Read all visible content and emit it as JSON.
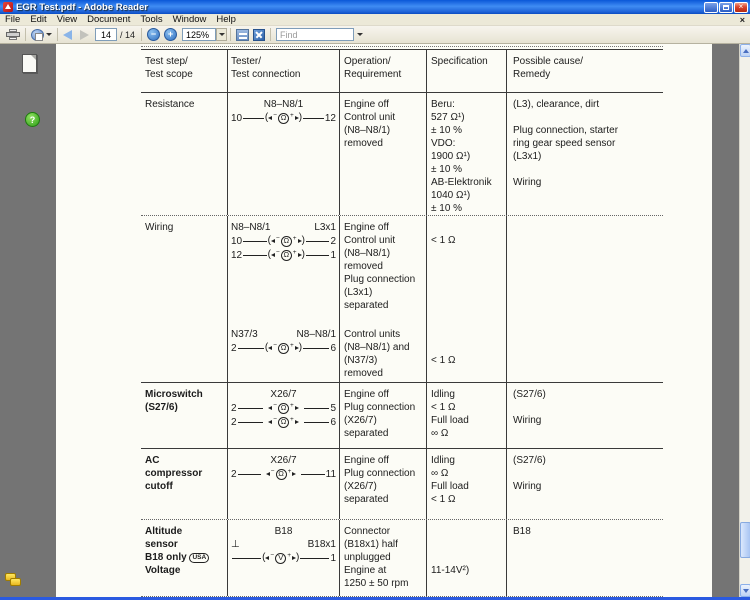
{
  "window": {
    "title": "EGR Test.pdf - Adobe Reader"
  },
  "menu": {
    "items": [
      "File",
      "Edit",
      "View",
      "Document",
      "Tools",
      "Window",
      "Help"
    ]
  },
  "toolbar": {
    "page_current": "14",
    "page_total": "/ 14",
    "zoom_level": "125%",
    "find_placeholder": "Find"
  },
  "icons": {
    "minimize": "_",
    "close": "×",
    "help": "?",
    "zoom_out": "−",
    "zoom_in": "+",
    "meter_minus": "−",
    "meter_plus": "+"
  },
  "pdf_table": {
    "columns": [
      [
        "Test step/",
        "Test scope"
      ],
      [
        "Tester/",
        "Test connection"
      ],
      [
        "Operation/",
        "Requirement"
      ],
      [
        "Specification"
      ],
      [
        "Possible cause/",
        "Remedy"
      ]
    ],
    "rows": [
      {
        "step": {
          "bold": false,
          "lines": [
            "Resistance"
          ]
        },
        "tester": {
          "subs": [
            {
              "labels": [
                {
                  "c": "N8–N8/1"
                }
              ],
              "lines": [
                {
                  "l": "10",
                  "r": "12",
                  "m": "Ω",
                  "paren": true
                }
              ]
            }
          ]
        },
        "operation": {
          "subs": [
            [
              "Engine off",
              "Control unit",
              "(N8–N8/1)",
              "removed"
            ]
          ]
        },
        "spec": {
          "subs": [
            [
              "Beru:",
              "527 Ω¹)",
              "± 10 %",
              "VDO:",
              "1900 Ω¹)",
              "± 10 %",
              "AB-Elektronik",
              "1040 Ω¹)",
              "± 10 %"
            ]
          ]
        },
        "cause": {
          "lines": [
            "(L3), clearance, dirt",
            "",
            "Plug connection, starter",
            "ring gear speed sensor",
            "(L3x1)",
            "",
            "Wiring"
          ]
        }
      },
      {
        "step": {
          "bold": false,
          "lines": [
            "Wiring"
          ]
        },
        "tester": {
          "subs": [
            {
              "labels": [
                {
                  "l": "N8–N8/1",
                  "r": "L3x1"
                }
              ],
              "lines": [
                {
                  "l": "10",
                  "r": "2",
                  "m": "Ω",
                  "paren": true
                },
                {
                  "l": "12",
                  "r": "1",
                  "m": "Ω",
                  "paren": true
                }
              ]
            },
            {
              "labels": [
                {
                  "l": "N37/3",
                  "r": "N8–N8/1"
                }
              ],
              "lines": [
                {
                  "l": "2",
                  "r": "6",
                  "m": "Ω",
                  "paren": true
                }
              ]
            }
          ]
        },
        "operation": {
          "subs": [
            [
              "Engine off",
              "Control unit",
              "(N8–N8/1)",
              "removed",
              "Plug connection",
              "(L3x1)",
              "separated"
            ],
            [
              "Control units",
              "(N8–N8/1) and",
              "(N37/3)",
              "removed"
            ]
          ]
        },
        "spec": {
          "subs": [
            [
              "",
              "< 1 Ω"
            ],
            [
              "",
              "",
              "< 1 Ω"
            ]
          ]
        },
        "cause": {
          "lines": []
        }
      },
      {
        "step": {
          "bold": true,
          "lines": [
            "Microswitch",
            "(S27/6)"
          ]
        },
        "tester": {
          "subs": [
            {
              "labels": [
                {
                  "c": "X26/7"
                }
              ],
              "lines": [
                {
                  "l": "2",
                  "r": "5",
                  "m": "Ω",
                  "paren": false
                },
                {
                  "l": "2",
                  "r": "6",
                  "m": "Ω",
                  "paren": false
                }
              ]
            }
          ]
        },
        "operation": {
          "subs": [
            [
              "Engine off",
              "Plug connection",
              "(X26/7)",
              "separated"
            ]
          ]
        },
        "spec": {
          "subs": [
            [
              "Idling",
              "< 1 Ω",
              "Full load",
              "∞ Ω"
            ]
          ]
        },
        "cause": {
          "lines": [
            "(S27/6)",
            "",
            "Wiring"
          ]
        }
      },
      {
        "step": {
          "bold": true,
          "lines": [
            "AC",
            "compressor",
            "cutoff"
          ]
        },
        "tester": {
          "subs": [
            {
              "labels": [
                {
                  "c": "X26/7"
                }
              ],
              "lines": [
                {
                  "l": "2",
                  "r": "11",
                  "m": "Ω",
                  "paren": false
                }
              ]
            }
          ]
        },
        "operation": {
          "subs": [
            [
              "Engine off",
              "Plug connection",
              "(X26/7)",
              "separated"
            ]
          ]
        },
        "spec": {
          "subs": [
            [
              "Idling",
              "∞ Ω",
              "Full load",
              "< 1 Ω"
            ]
          ]
        },
        "cause": {
          "lines": [
            "(S27/6)",
            "",
            "Wiring"
          ]
        }
      },
      {
        "step": {
          "bold": true,
          "lines": [
            "Altitude",
            "sensor",
            {
              "t": "B18 only",
              "badge": "USA"
            },
            "Voltage"
          ]
        },
        "tester": {
          "subs": [
            {
              "labels": [
                {
                  "c": "B18"
                },
                {
                  "l": "⊥",
                  "r": "B18x1"
                }
              ],
              "lines": [
                {
                  "l": "",
                  "r": "1",
                  "m": "V",
                  "paren": true
                }
              ]
            }
          ]
        },
        "operation": {
          "subs": [
            [
              "Connector",
              "(B18x1) half",
              "unplugged",
              "Engine at",
              "1250 ± 50 rpm"
            ]
          ]
        },
        "spec": {
          "subs": [
            [
              "",
              "",
              "",
              "11-14V²)"
            ]
          ]
        },
        "cause": {
          "lines": [
            "B18"
          ]
        }
      }
    ]
  }
}
